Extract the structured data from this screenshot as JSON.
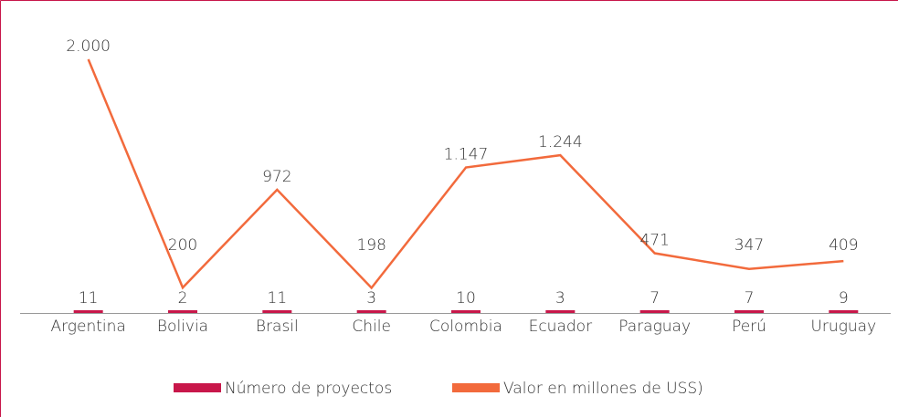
{
  "chart_data": {
    "type": "bar-line",
    "categories": [
      "Argentina",
      "Bolivia",
      "Brasil",
      "Chile",
      "Colombia",
      "Ecuador",
      "Paraguay",
      "Perú",
      "Uruguay"
    ],
    "series": [
      {
        "name": "Número de proyectos",
        "type": "bar",
        "color": "#c8174a",
        "values": [
          11,
          2,
          11,
          3,
          10,
          3,
          7,
          7,
          9
        ]
      },
      {
        "name": "Valor en millones de USS)",
        "type": "line",
        "color": "#f26a3c",
        "values": [
          2000,
          200,
          972,
          198,
          1147,
          1244,
          471,
          347,
          409
        ],
        "value_labels": [
          "2.000",
          "200",
          "972",
          "198",
          "1.147",
          "1.244",
          "471",
          "347",
          "409"
        ]
      }
    ],
    "ylim": [
      0,
      2000
    ]
  }
}
